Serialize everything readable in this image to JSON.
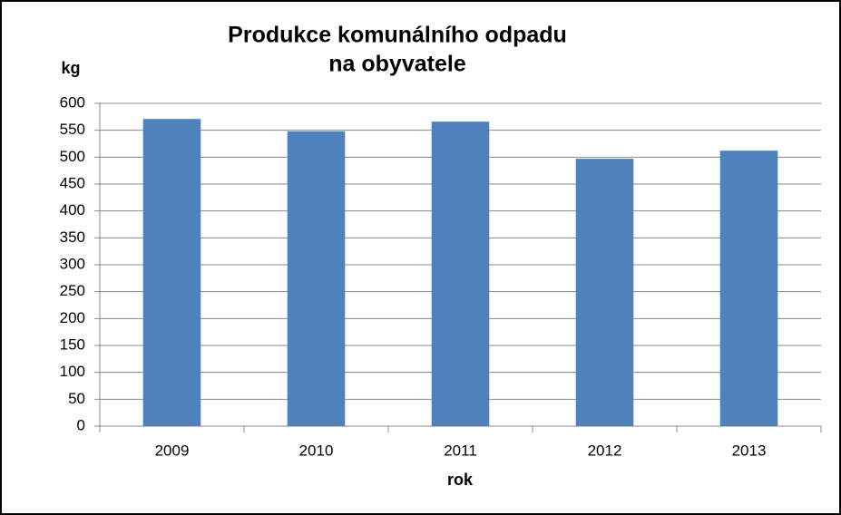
{
  "chart_data": {
    "type": "bar",
    "title": [
      "Produkce komunálního odpadu",
      "na obyvatele"
    ],
    "y_label": "kg",
    "x_label": "rok",
    "categories": [
      "2009",
      "2010",
      "2011",
      "2012",
      "2013"
    ],
    "values": [
      571,
      548,
      566,
      497,
      512
    ],
    "color": "#4f81bd",
    "ylim": [
      0,
      600
    ],
    "yticks": [
      0,
      50,
      100,
      150,
      200,
      250,
      300,
      350,
      400,
      450,
      500,
      550,
      600
    ],
    "grid": true
  }
}
